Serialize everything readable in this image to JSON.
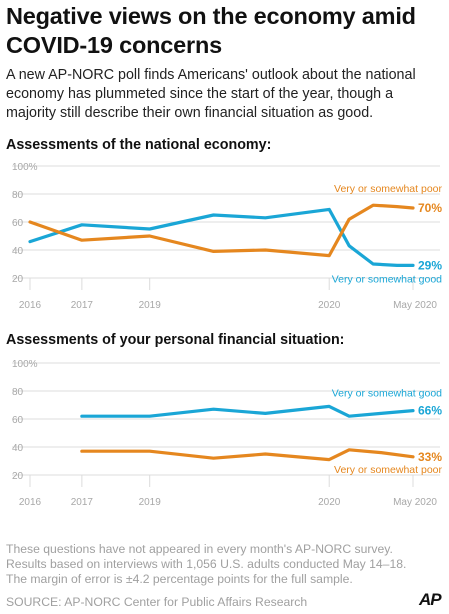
{
  "title": "Negative views on the economy amid COVID-19 concerns",
  "intro": "A new AP-NORC poll finds Americans' outlook about the national economy has plummeted since the start of the year, though a majority still describe their own financial situation as good.",
  "notes": "These questions have not appeared in every month's AP-NORC survey. Results based on interviews with 1,056 U.S. adults conducted May 14–18. The margin of error is ±4.2 percentage points for the full sample.",
  "source": "SOURCE: AP-NORC Center for Public Affairs Research",
  "logo": "AP",
  "colors": {
    "good": "#1aa6d6",
    "poor": "#e5871f",
    "grid": "#dcdcdc",
    "tick": "#a8a8a8"
  },
  "chart_data": [
    {
      "type": "line",
      "title": "Assessments of the national economy:",
      "x": [
        2016.0,
        2016.65,
        2017.5,
        2018.3,
        2018.95,
        2019.75,
        2020.0,
        2020.3,
        2020.6,
        2020.8
      ],
      "xticks": [
        {
          "value": 2016.0,
          "label": "2016"
        },
        {
          "value": 2016.65,
          "label": "2017"
        },
        {
          "value": 2017.5,
          "label": "2019"
        },
        {
          "value": 2019.75,
          "label": "2020"
        },
        {
          "value": 2020.8,
          "label": "May 2020"
        }
      ],
      "xlim": [
        2016.0,
        2020.8
      ],
      "ylim": [
        20,
        100
      ],
      "yticks": [
        20,
        40,
        60,
        80,
        100
      ],
      "ytick_labels": [
        "20",
        "40",
        "60",
        "80",
        "100%"
      ],
      "series": [
        {
          "name": "Very or somewhat good",
          "color": "#1aa6d6",
          "end_label": "29%",
          "values": [
            46,
            58,
            55,
            65,
            63,
            69,
            43,
            30,
            29,
            29
          ]
        },
        {
          "name": "Very or somewhat poor",
          "color": "#e5871f",
          "end_label": "70%",
          "values": [
            60,
            47,
            50,
            39,
            40,
            36,
            62,
            72,
            71,
            70
          ]
        }
      ]
    },
    {
      "type": "line",
      "title": "Assessments of your personal financial situation:",
      "x": [
        2016.65,
        2017.5,
        2018.3,
        2018.95,
        2019.75,
        2020.0,
        2020.4,
        2020.8
      ],
      "xticks": [
        {
          "value": 2016.0,
          "label": "2016"
        },
        {
          "value": 2016.65,
          "label": "2017"
        },
        {
          "value": 2017.5,
          "label": "2019"
        },
        {
          "value": 2019.75,
          "label": "2020"
        },
        {
          "value": 2020.8,
          "label": "May 2020"
        }
      ],
      "xlim": [
        2016.0,
        2020.8
      ],
      "ylim": [
        20,
        100
      ],
      "yticks": [
        20,
        40,
        60,
        80,
        100
      ],
      "ytick_labels": [
        "20",
        "40",
        "60",
        "80",
        "100%"
      ],
      "series": [
        {
          "name": "Very or somewhat good",
          "color": "#1aa6d6",
          "end_label": "66%",
          "values": [
            62,
            62,
            67,
            64,
            69,
            62,
            64,
            66
          ]
        },
        {
          "name": "Very or somewhat poor",
          "color": "#e5871f",
          "end_label": "33%",
          "values": [
            37,
            37,
            32,
            35,
            31,
            38,
            36,
            33
          ]
        }
      ]
    }
  ]
}
